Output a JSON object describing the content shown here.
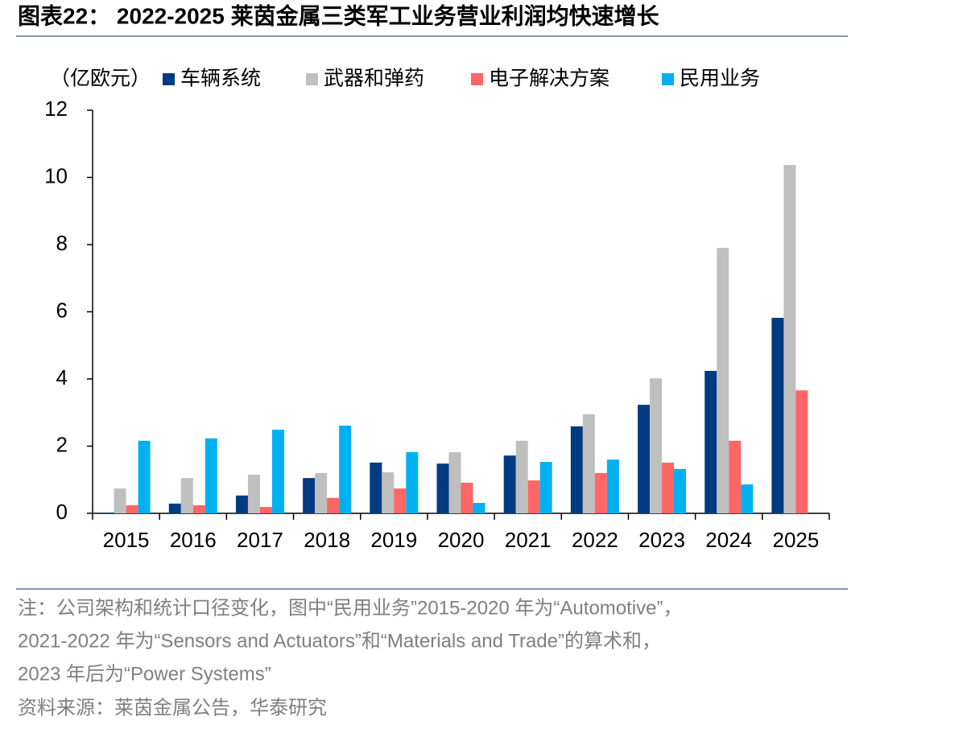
{
  "chart_data": {
    "type": "bar",
    "title": "图表22： 2022-2025 莱茵金属三类军工业务营业利润均快速增长",
    "y_label": "（亿欧元）",
    "categories": [
      "2015",
      "2016",
      "2017",
      "2018",
      "2019",
      "2020",
      "2021",
      "2022",
      "2023",
      "2024",
      "2025"
    ],
    "series": [
      {
        "name": "车辆系统",
        "color": "#003a80",
        "values": [
          0.02,
          0.29,
          0.53,
          1.05,
          1.51,
          1.48,
          1.72,
          2.59,
          3.23,
          4.24,
          5.82
        ]
      },
      {
        "name": "武器和弹药",
        "color": "#bfbfbf",
        "values": [
          0.74,
          1.05,
          1.15,
          1.2,
          1.22,
          1.82,
          2.16,
          2.95,
          4.02,
          7.9,
          10.37
        ]
      },
      {
        "name": "电子解决方案",
        "color": "#ff6666",
        "values": [
          0.24,
          0.24,
          0.19,
          0.46,
          0.74,
          0.91,
          0.98,
          1.2,
          1.51,
          2.16,
          3.66
        ]
      },
      {
        "name": "民用业务",
        "color": "#00b0f0",
        "values": [
          2.16,
          2.23,
          2.49,
          2.61,
          1.82,
          0.31,
          1.53,
          1.6,
          1.32,
          0.86,
          null
        ]
      }
    ],
    "ylim": [
      0,
      12
    ],
    "yticks": [
      0,
      2,
      4,
      6,
      8,
      10,
      12
    ],
    "grid": false,
    "notes": [
      "注：公司架构和统计口径变化，图中“民用业务”2015-2020 年为“Automotive”，",
      "2021-2022 年为“Sensors and Actuators”和“Materials and Trade”的算术和，",
      "2023 年后为“Power Systems”"
    ],
    "source": "资料来源：莱茵金属公告，华泰研究"
  }
}
